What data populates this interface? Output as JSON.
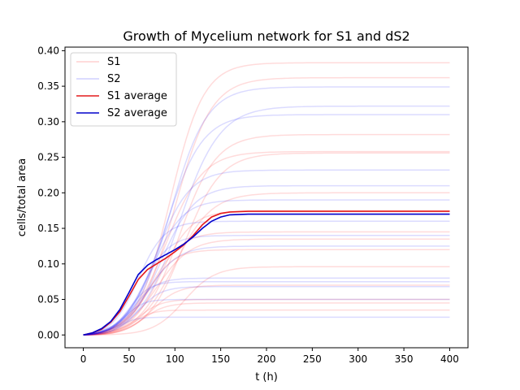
{
  "chart_data": {
    "type": "line",
    "title": "Growth of Mycelium network for S1 and dS2",
    "xlabel": "t (h)",
    "ylabel": "cells/total area",
    "xlim": [
      -20,
      420
    ],
    "ylim": [
      -0.018,
      0.405
    ],
    "x_ticks": [
      0,
      50,
      100,
      150,
      200,
      250,
      300,
      350,
      400
    ],
    "y_ticks": [
      0.0,
      0.05,
      0.1,
      0.15,
      0.2,
      0.25,
      0.3,
      0.35,
      0.4
    ],
    "grid": false,
    "legend_position": "upper-left",
    "colors": {
      "S1": "#ff0000",
      "S2": "#0000ff",
      "S1_average": "#e41a1c",
      "S2_average": "#0000cc"
    },
    "legend": [
      {
        "label": "S1",
        "series": "S1"
      },
      {
        "label": "S2",
        "series": "S2"
      },
      {
        "label": "S1 average",
        "series": "S1_average"
      },
      {
        "label": "S2 average",
        "series": "S2_average"
      }
    ],
    "sample_curves": {
      "S1": [
        {
          "final": 0.383,
          "midpoint": 95,
          "steepness": 0.055
        },
        {
          "final": 0.362,
          "midpoint": 100,
          "steepness": 0.05
        },
        {
          "final": 0.282,
          "midpoint": 105,
          "steepness": 0.05
        },
        {
          "final": 0.258,
          "midpoint": 90,
          "steepness": 0.05
        },
        {
          "final": 0.256,
          "midpoint": 110,
          "steepness": 0.05
        },
        {
          "final": 0.2,
          "midpoint": 100,
          "steepness": 0.05
        },
        {
          "final": 0.175,
          "midpoint": 85,
          "steepness": 0.06
        },
        {
          "final": 0.145,
          "midpoint": 75,
          "steepness": 0.06
        },
        {
          "final": 0.135,
          "midpoint": 80,
          "steepness": 0.055
        },
        {
          "final": 0.12,
          "midpoint": 70,
          "steepness": 0.07
        },
        {
          "final": 0.096,
          "midpoint": 110,
          "steepness": 0.06
        },
        {
          "final": 0.07,
          "midpoint": 75,
          "steepness": 0.07
        },
        {
          "final": 0.05,
          "midpoint": 60,
          "steepness": 0.08
        },
        {
          "final": 0.045,
          "midpoint": 65,
          "steepness": 0.08
        },
        {
          "final": 0.035,
          "midpoint": 55,
          "steepness": 0.1
        }
      ],
      "S2": [
        {
          "final": 0.349,
          "midpoint": 95,
          "steepness": 0.05
        },
        {
          "final": 0.322,
          "midpoint": 105,
          "steepness": 0.045
        },
        {
          "final": 0.31,
          "midpoint": 90,
          "steepness": 0.05
        },
        {
          "final": 0.232,
          "midpoint": 80,
          "steepness": 0.055
        },
        {
          "final": 0.21,
          "midpoint": 85,
          "steepness": 0.055
        },
        {
          "final": 0.19,
          "midpoint": 75,
          "steepness": 0.06
        },
        {
          "final": 0.16,
          "midpoint": 60,
          "steepness": 0.07
        },
        {
          "final": 0.14,
          "midpoint": 65,
          "steepness": 0.07
        },
        {
          "final": 0.125,
          "midpoint": 70,
          "steepness": 0.06
        },
        {
          "final": 0.08,
          "midpoint": 55,
          "steepness": 0.08
        },
        {
          "final": 0.075,
          "midpoint": 50,
          "steepness": 0.09
        },
        {
          "final": 0.068,
          "midpoint": 60,
          "steepness": 0.08
        },
        {
          "final": 0.05,
          "midpoint": 45,
          "steepness": 0.1
        },
        {
          "final": 0.025,
          "midpoint": 40,
          "steepness": 0.12
        }
      ]
    },
    "averages": {
      "S1_average": {
        "x": [
          0,
          10,
          20,
          30,
          40,
          50,
          60,
          70,
          80,
          90,
          100,
          110,
          120,
          130,
          140,
          150,
          160,
          180,
          200,
          250,
          300,
          350,
          400
        ],
        "y": [
          0.0,
          0.003,
          0.008,
          0.018,
          0.033,
          0.055,
          0.078,
          0.092,
          0.1,
          0.108,
          0.117,
          0.127,
          0.14,
          0.155,
          0.166,
          0.171,
          0.173,
          0.174,
          0.174,
          0.174,
          0.174,
          0.174,
          0.174
        ]
      },
      "S2_average": {
        "x": [
          0,
          10,
          20,
          30,
          40,
          50,
          60,
          70,
          80,
          90,
          100,
          110,
          120,
          130,
          140,
          150,
          160,
          180,
          200,
          250,
          300,
          350,
          400
        ],
        "y": [
          0.0,
          0.003,
          0.009,
          0.019,
          0.036,
          0.06,
          0.085,
          0.098,
          0.106,
          0.113,
          0.12,
          0.128,
          0.138,
          0.15,
          0.16,
          0.166,
          0.169,
          0.17,
          0.17,
          0.17,
          0.17,
          0.17,
          0.17
        ]
      }
    }
  }
}
